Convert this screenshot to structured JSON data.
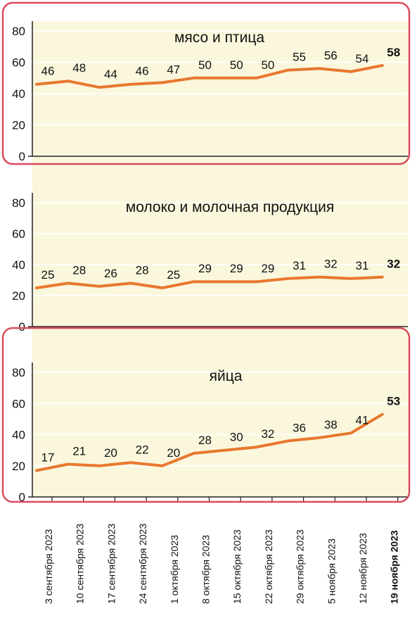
{
  "chart_data": [
    {
      "type": "line",
      "title": "мясо и птица",
      "categories": [
        "3 сентября 2023",
        "10 сентября 2023",
        "17 сентября 2023",
        "24 сентября 2023",
        "1 октября 2023",
        "8 октября 2023",
        "15 октября 2023",
        "22 октября 2023",
        "29 октября 2023",
        "5 ноября 2023",
        "12 ноября 2023",
        "19 ноября 2023"
      ],
      "values": [
        46,
        48,
        44,
        46,
        47,
        50,
        50,
        50,
        55,
        56,
        54,
        58
      ],
      "y_ticks": [
        "0",
        "20",
        "40",
        "60",
        "80"
      ],
      "ylim": [
        0,
        80
      ],
      "highlighted": true
    },
    {
      "type": "line",
      "title": "молоко и молочная продукция",
      "categories": [
        "3 сентября 2023",
        "10 сентября 2023",
        "17 сентября 2023",
        "24 сентября 2023",
        "1 октября 2023",
        "8 октября 2023",
        "15 октября 2023",
        "22 октября 2023",
        "29 октября 2023",
        "5 ноября 2023",
        "12 ноября 2023",
        "19 ноября 2023"
      ],
      "values": [
        25,
        28,
        26,
        28,
        25,
        29,
        29,
        29,
        31,
        32,
        31,
        32
      ],
      "y_ticks": [
        "0",
        "20",
        "40",
        "60",
        "80"
      ],
      "ylim": [
        0,
        80
      ],
      "highlighted": false
    },
    {
      "type": "line",
      "title": "яйца",
      "categories": [
        "3 сентября 2023",
        "10 сентября 2023",
        "17 сентября 2023",
        "24 сентября 2023",
        "1 октября 2023",
        "8 октября 2023",
        "15 октября 2023",
        "22 октября 2023",
        "29 октября 2023",
        "5 ноября 2023",
        "12 ноября 2023",
        "19 ноября 2023"
      ],
      "values": [
        17,
        21,
        20,
        22,
        20,
        28,
        30,
        32,
        36,
        38,
        41,
        53
      ],
      "y_ticks": [
        "0",
        "20",
        "40",
        "60",
        "80"
      ],
      "ylim": [
        0,
        80
      ],
      "highlighted": true
    }
  ],
  "style": {
    "line_color": "#e8782e",
    "panel_fill": "#fbf7dd",
    "highlight_border": "#d94a5c",
    "gridline_color": "#ffffff",
    "axis_color": "#222222"
  }
}
